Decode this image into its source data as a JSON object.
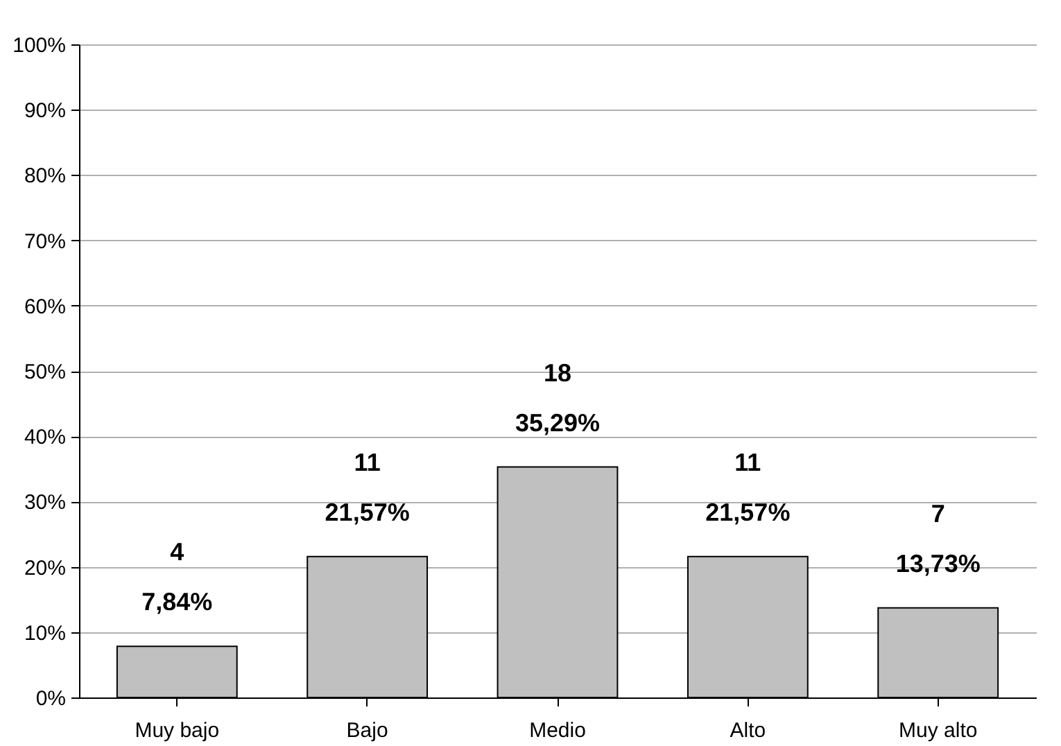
{
  "chart_data": {
    "type": "bar",
    "categories": [
      "Muy bajo",
      "Bajo",
      "Medio",
      "Alto",
      "Muy alto"
    ],
    "values": [
      7.84,
      21.57,
      35.29,
      21.57,
      13.73
    ],
    "value_labels": [
      "7,84%",
      "21,57%",
      "35,29%",
      "21,57%",
      "13,73%"
    ],
    "color": "#c0c0c0",
    "ylim": [
      0,
      100
    ],
    "yticks": [
      {
        "value": 0,
        "label": "0%"
      },
      {
        "value": 10,
        "label": "10%"
      },
      {
        "value": 20,
        "label": "20%"
      },
      {
        "value": 30,
        "label": "30%"
      },
      {
        "value": 40,
        "label": "40%"
      },
      {
        "value": 50,
        "label": "50%"
      },
      {
        "value": 60,
        "label": "60%"
      },
      {
        "value": 70,
        "label": "70%"
      },
      {
        "value": 80,
        "label": "80%"
      },
      {
        "value": 90,
        "label": "90%"
      },
      {
        "value": 100,
        "label": "100%"
      }
    ],
    "annotations": [
      "4",
      "11",
      "18",
      "11",
      "7"
    ],
    "grid": "y"
  }
}
